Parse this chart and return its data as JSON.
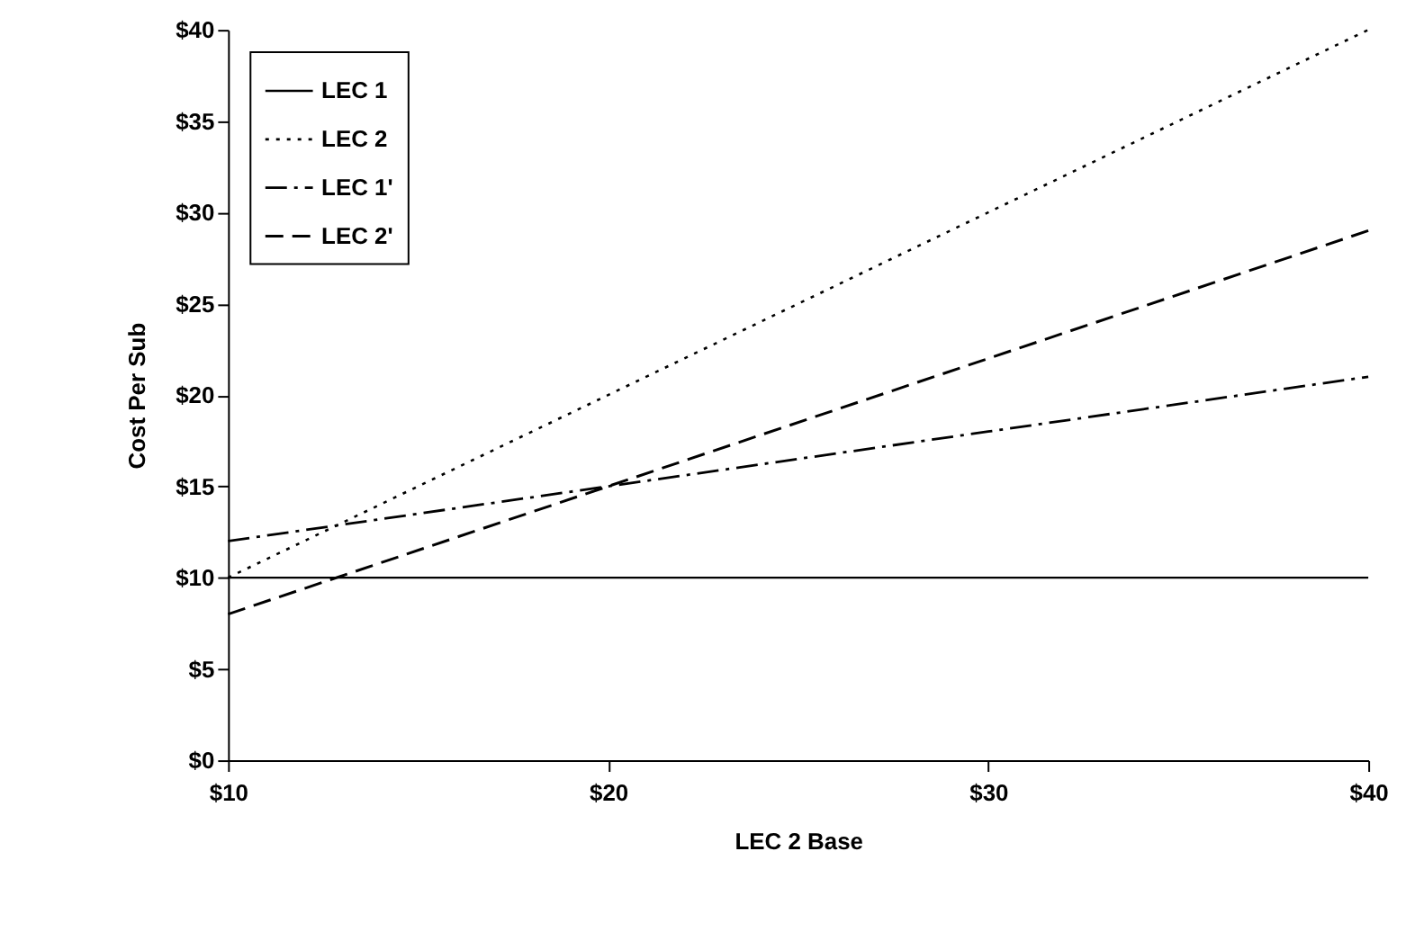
{
  "chart_data": {
    "type": "line",
    "xlabel": "LEC 2 Base",
    "ylabel": "Cost Per Sub",
    "x": [
      10,
      20,
      30,
      40
    ],
    "series": [
      {
        "name": "LEC 1",
        "color": "#000000",
        "line_style": "solid",
        "values": [
          10,
          10,
          10,
          10
        ]
      },
      {
        "name": "LEC 2",
        "color": "#000000",
        "line_style": "dotted",
        "values": [
          10,
          20,
          30,
          40
        ]
      },
      {
        "name": "LEC 1'",
        "color": "#000000",
        "line_style": "dashdot",
        "values": [
          12,
          15,
          18,
          21
        ]
      },
      {
        "name": "LEC 2'",
        "color": "#000000",
        "line_style": "dashed",
        "values": [
          8,
          15,
          22,
          29
        ]
      }
    ],
    "xlim": [
      10,
      40
    ],
    "ylim": [
      0,
      40
    ],
    "xticks": [
      {
        "value": 10,
        "label": "$10"
      },
      {
        "value": 20,
        "label": "$20"
      },
      {
        "value": 30,
        "label": "$30"
      },
      {
        "value": 40,
        "label": "$40"
      }
    ],
    "yticks": [
      {
        "value": 0,
        "label": "$0"
      },
      {
        "value": 5,
        "label": "$5"
      },
      {
        "value": 10,
        "label": "$10"
      },
      {
        "value": 15,
        "label": "$15"
      },
      {
        "value": 20,
        "label": "$20"
      },
      {
        "value": 25,
        "label": "$25"
      },
      {
        "value": 30,
        "label": "$30"
      },
      {
        "value": 35,
        "label": "$35"
      },
      {
        "value": 40,
        "label": "$40"
      }
    ],
    "grid": false,
    "legend": "top left",
    "marker": "none"
  }
}
